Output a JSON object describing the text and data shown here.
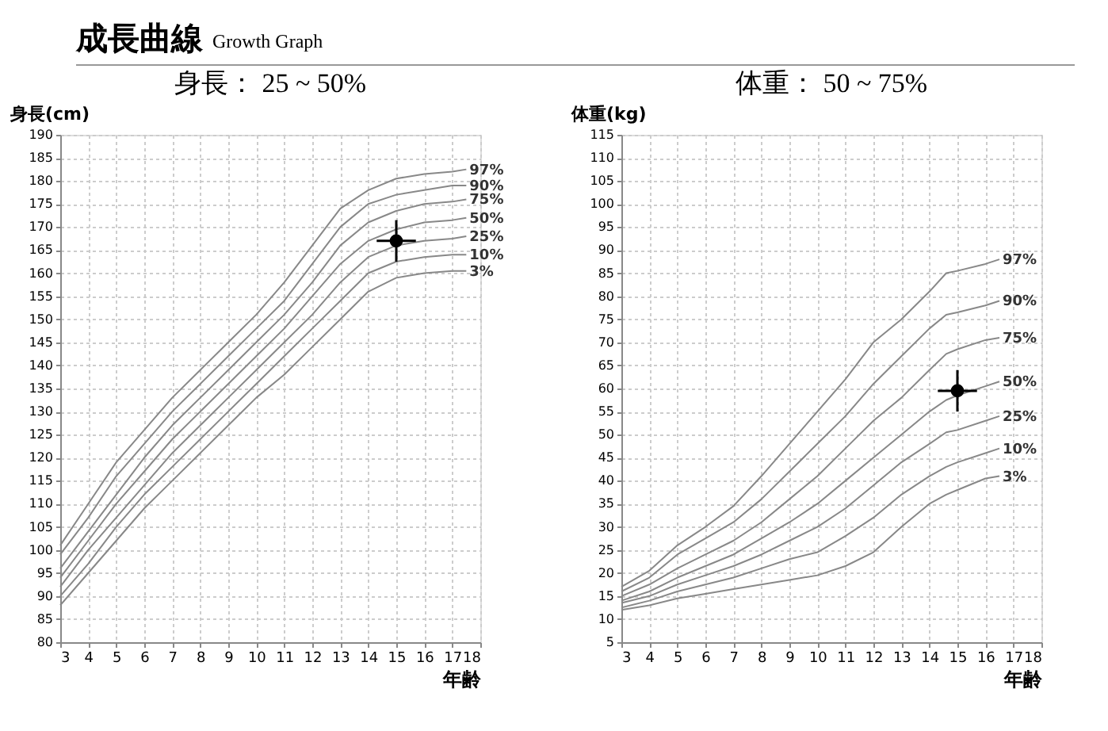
{
  "chart_data": [
    {
      "type": "other",
      "title": "成長曲線",
      "subtitle": "Growth Graph"
    },
    {
      "type": "line",
      "title": "身長： 25 ~ 50%",
      "ylabel": "身長(cm)",
      "xlabel": "年齢",
      "xlim": [
        3,
        18
      ],
      "xticks": [
        3,
        4,
        5,
        6,
        7,
        8,
        9,
        10,
        11,
        12,
        13,
        14,
        15,
        16,
        17,
        18
      ],
      "ylim": [
        80,
        190
      ],
      "yticks": [
        80,
        85,
        90,
        95,
        100,
        105,
        110,
        115,
        120,
        125,
        130,
        135,
        140,
        145,
        150,
        155,
        160,
        165,
        170,
        175,
        180,
        185,
        190
      ],
      "grid": true,
      "legend": false,
      "line_style": "solid",
      "marker": "none",
      "x": [
        3,
        4,
        5,
        6,
        7,
        8,
        9,
        10,
        11,
        12,
        13,
        14,
        15,
        16,
        17,
        17.5
      ],
      "series": [
        {
          "name": "97%",
          "color": "#888888",
          "values": [
            101,
            110,
            119,
            126,
            133,
            139,
            145,
            151,
            158,
            166,
            174,
            178,
            180.5,
            181.5,
            182,
            182.5
          ]
        },
        {
          "name": "90%",
          "color": "#888888",
          "values": [
            99,
            107,
            116,
            123,
            130,
            136,
            142,
            148,
            154,
            162,
            170,
            175,
            177,
            178,
            179,
            179
          ]
        },
        {
          "name": "75%",
          "color": "#888888",
          "values": [
            96,
            104,
            112,
            120,
            127,
            133,
            139,
            145,
            151,
            158,
            166,
            171,
            173.5,
            175,
            175.5,
            176
          ]
        },
        {
          "name": "50%",
          "color": "#888888",
          "values": [
            94,
            102,
            110,
            117,
            124,
            130,
            136,
            142,
            148,
            155,
            162,
            167,
            169.5,
            171,
            171.5,
            172
          ]
        },
        {
          "name": "25%",
          "color": "#888888",
          "values": [
            92,
            100,
            107,
            114,
            121,
            127,
            133,
            139,
            145,
            151,
            158,
            163.5,
            166,
            167,
            167.5,
            168
          ]
        },
        {
          "name": "10%",
          "color": "#888888",
          "values": [
            90,
            97,
            105,
            112,
            118,
            124,
            130,
            136,
            142,
            148,
            154,
            160,
            162.5,
            163.5,
            164,
            164
          ]
        },
        {
          "name": "3%",
          "color": "#888888",
          "values": [
            88,
            95,
            102,
            109,
            115,
            121,
            127,
            133,
            138,
            144,
            150,
            156,
            159,
            160,
            160.5,
            160.5
          ]
        },
        {
          "type": "scatter",
          "marker": "circle",
          "color": "#000000",
          "x": [
            15
          ],
          "values": [
            167
          ],
          "errors": [
            4.5
          ],
          "xerrors": [
            0.7
          ]
        }
      ]
    },
    {
      "type": "line",
      "title": "体重： 50 ~ 75%",
      "ylabel": "体重(kg)",
      "xlabel": "年齢",
      "xlim": [
        3,
        18
      ],
      "xticks": [
        3,
        4,
        5,
        6,
        7,
        8,
        9,
        10,
        11,
        12,
        13,
        14,
        15,
        16,
        17,
        18
      ],
      "ylim": [
        5,
        115
      ],
      "yticks": [
        5,
        10,
        15,
        20,
        25,
        30,
        35,
        40,
        45,
        50,
        55,
        60,
        65,
        70,
        75,
        80,
        85,
        90,
        95,
        100,
        105,
        110,
        115
      ],
      "grid": true,
      "legend": false,
      "line_style": "solid",
      "marker": "none",
      "x": [
        3,
        4,
        5,
        6,
        7,
        8,
        9,
        10,
        11,
        12,
        13,
        14,
        14.6,
        15,
        16,
        16.5
      ],
      "series": [
        {
          "name": "97%",
          "color": "#888888",
          "values": [
            17,
            20.5,
            26,
            30,
            34.5,
            41,
            48,
            55,
            62,
            70,
            75,
            81,
            85,
            85.5,
            87,
            88
          ]
        },
        {
          "name": "90%",
          "color": "#888888",
          "values": [
            16,
            19,
            24,
            27.5,
            31,
            36,
            42,
            48,
            54,
            61,
            67,
            73,
            76,
            76.5,
            78,
            79
          ]
        },
        {
          "name": "75%",
          "color": "#888888",
          "values": [
            15,
            17.5,
            21,
            24,
            27,
            31,
            36,
            41,
            47,
            53,
            58,
            64,
            67.5,
            68.5,
            70.5,
            71
          ]
        },
        {
          "name": "50%",
          "color": "#888888",
          "values": [
            14,
            16,
            19,
            21.5,
            24,
            27.5,
            31,
            35,
            40,
            45,
            50,
            55,
            57.5,
            58.5,
            60.5,
            61.5
          ]
        },
        {
          "name": "25%",
          "color": "#888888",
          "values": [
            13.5,
            15,
            17.5,
            19.5,
            21.5,
            24,
            27,
            30,
            34,
            39,
            44,
            48,
            50.5,
            51,
            53,
            54
          ]
        },
        {
          "name": "10%",
          "color": "#888888",
          "values": [
            12.5,
            14,
            16,
            17.5,
            19,
            21,
            23,
            24.5,
            28,
            32,
            37,
            41,
            43,
            44,
            46,
            47
          ]
        },
        {
          "name": "3%",
          "color": "#888888",
          "values": [
            12,
            13,
            14.5,
            15.5,
            16.5,
            17.5,
            18.5,
            19.5,
            21.5,
            24.5,
            30,
            35,
            37,
            38,
            40.5,
            41
          ]
        },
        {
          "type": "scatter",
          "marker": "circle",
          "color": "#000000",
          "x": [
            15
          ],
          "values": [
            59.5
          ],
          "errors": [
            4.5
          ],
          "xerrors": [
            0.7
          ]
        }
      ]
    }
  ]
}
